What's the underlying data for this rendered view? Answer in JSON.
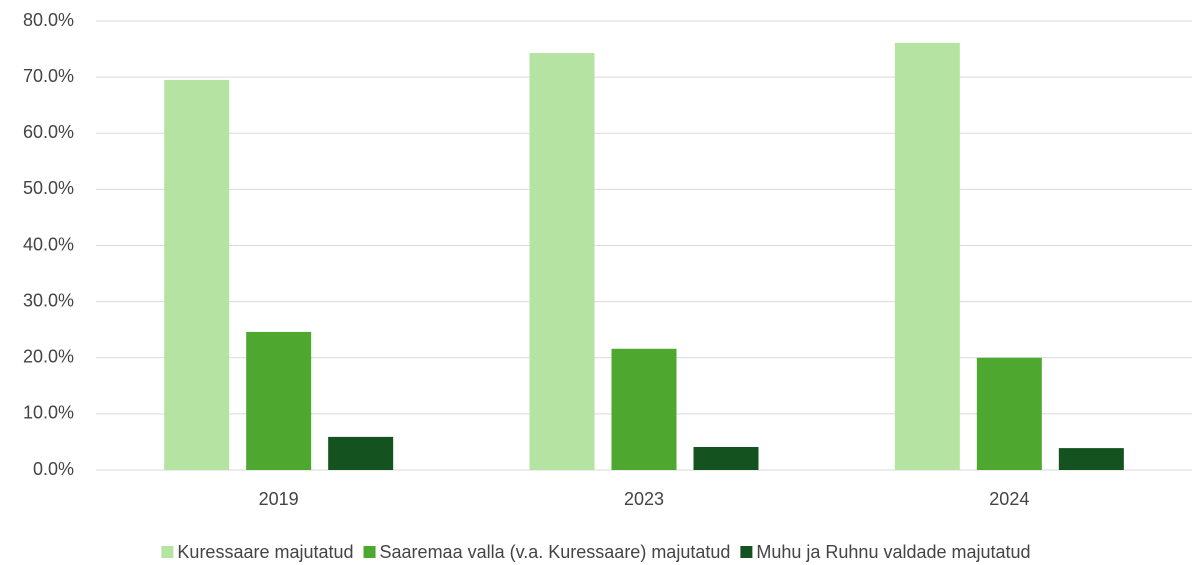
{
  "chart_data": {
    "type": "bar",
    "categories": [
      "2019",
      "2023",
      "2024"
    ],
    "series": [
      {
        "name": "Kuressaare majutatud",
        "color": "#b5e3a2",
        "values": [
          69.5,
          74.3,
          76.1
        ]
      },
      {
        "name": "Saaremaa valla (v.a. Kuressaare) majutatud",
        "color": "#4ea72e",
        "values": [
          24.6,
          21.6,
          20.0
        ]
      },
      {
        "name": "Muhu ja Ruhnu valdade majutatud",
        "color": "#145220",
        "values": [
          5.9,
          4.1,
          3.9
        ]
      }
    ],
    "ylim": [
      0,
      80
    ],
    "yticks": [
      {
        "value": 0,
        "label": "0.0%"
      },
      {
        "value": 10,
        "label": "10.0%"
      },
      {
        "value": 20,
        "label": "20.0%"
      },
      {
        "value": 30,
        "label": "30.0%"
      },
      {
        "value": 40,
        "label": "40.0%"
      },
      {
        "value": 50,
        "label": "50.0%"
      },
      {
        "value": 60,
        "label": "60.0%"
      },
      {
        "value": 70,
        "label": "70.0%"
      },
      {
        "value": 80,
        "label": "80.0%"
      }
    ],
    "grid": true,
    "legend": "bottom"
  }
}
